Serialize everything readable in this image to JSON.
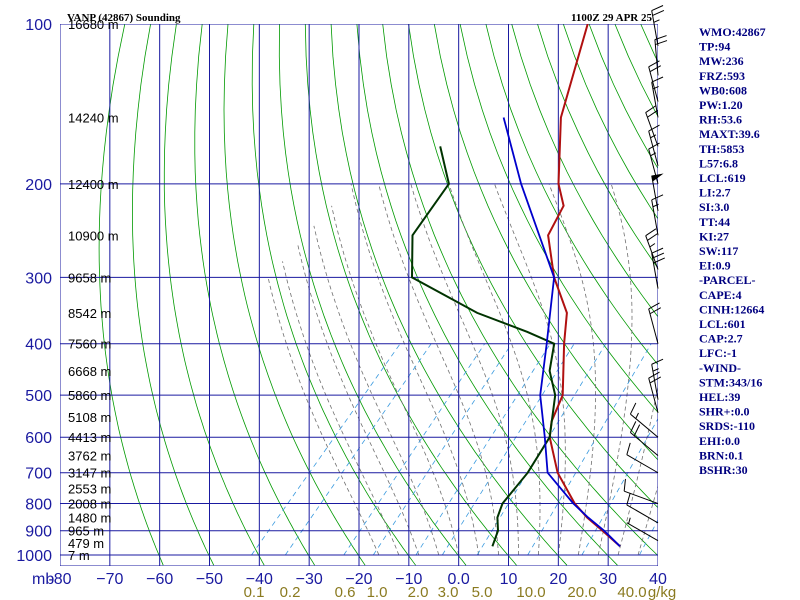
{
  "header": {
    "station": "VANP (42867) Sounding",
    "time": "1100Z 29 APR 25"
  },
  "colors": {
    "axis": "#1a1aa0",
    "dry_adiabat": "#009900",
    "moist_adiabat": "#707070",
    "mixing_ratio": "#3a9adf",
    "temperature": "#b01010",
    "dewpoint": "#003300",
    "parcel": "#0000cc",
    "wind": "#000000",
    "mixing_label": "#8a7a20",
    "index_text": "#000080"
  },
  "indices": [
    "WMO:42867",
    "TP:94",
    "MW:236",
    "FRZ:593",
    "WB0:608",
    "PW:1.20",
    "RH:53.6",
    "MAXT:39.6",
    "TH:5853",
    "L57:6.8",
    "LCL:619",
    "LI:2.7",
    "SI:3.0",
    "TT:44",
    "KI:27",
    "SW:117",
    "EI:0.9",
    "-PARCEL-",
    "CAPE:4",
    "CINH:12664",
    "LCL:601",
    "CAP:2.7",
    "LFC:-1",
    "-WIND-",
    "STM:343/16",
    "HEL:39",
    "SHR+:0.0",
    "SRDS:-110",
    "EHI:0.0",
    "BRN:0.1",
    "BSHR:30"
  ],
  "chart_data": {
    "type": "line",
    "chart_kind": "skew-T log-P sounding",
    "y_scale": "log pressure (inverted)",
    "ylim": [
      1000,
      100
    ],
    "xlim": [
      -80,
      40
    ],
    "x_unit_label": "mb",
    "grid": true,
    "pressure_ticks": [
      100,
      200,
      300,
      400,
      500,
      600,
      700,
      800,
      900,
      1000
    ],
    "temperature_ticks": [
      -80,
      -70,
      -60,
      -50,
      -40,
      -30,
      -20,
      -10,
      0,
      10,
      20,
      30,
      40
    ],
    "mixing_ratio_labels": [
      "0.1",
      "0.2",
      "0.6",
      "1.0",
      "2.0",
      "3.0",
      "5.0",
      "10.0",
      "20.0",
      "40.0",
      "g/kg"
    ],
    "mixing_ratio_values": [
      0.1,
      0.2,
      0.6,
      1.0,
      2.0,
      3.0,
      5.0,
      10.0,
      20.0,
      40.0
    ],
    "height_labels": [
      {
        "p": 100,
        "label": "16680 m"
      },
      {
        "p": 150,
        "label": "14240 m"
      },
      {
        "p": 200,
        "label": "12400 m"
      },
      {
        "p": 250,
        "label": "10900 m"
      },
      {
        "p": 300,
        "label": "9658 m"
      },
      {
        "p": 350,
        "label": "8542 m"
      },
      {
        "p": 400,
        "label": "7560 m"
      },
      {
        "p": 450,
        "label": "6668 m"
      },
      {
        "p": 500,
        "label": "5860 m"
      },
      {
        "p": 550,
        "label": "5108 m"
      },
      {
        "p": 600,
        "label": "4413 m"
      },
      {
        "p": 650,
        "label": "3762 m"
      },
      {
        "p": 700,
        "label": "3147 m"
      },
      {
        "p": 750,
        "label": "2553 m"
      },
      {
        "p": 800,
        "label": "2008 m"
      },
      {
        "p": 850,
        "label": "1480 m"
      },
      {
        "p": 900,
        "label": "965 m"
      },
      {
        "p": 950,
        "label": "479 m"
      },
      {
        "p": 1000,
        "label": "7 m"
      }
    ],
    "series": [
      {
        "key": "temperature",
        "points": [
          [
            963,
            30.8
          ],
          [
            900,
            24.5
          ],
          [
            850,
            19.0
          ],
          [
            800,
            14.0
          ],
          [
            700,
            5.0
          ],
          [
            600,
            -3.0
          ],
          [
            560,
            -5.5
          ],
          [
            500,
            -8.0
          ],
          [
            400,
            -17.0
          ],
          [
            350,
            -22.0
          ],
          [
            300,
            -31.0
          ],
          [
            250,
            -39.8
          ],
          [
            220,
            -42.0
          ],
          [
            200,
            -47.0
          ],
          [
            150,
            -58.5
          ],
          [
            100,
            -70.0
          ]
        ]
      },
      {
        "key": "dewpoint",
        "points": [
          [
            963,
            5.2
          ],
          [
            900,
            3.5
          ],
          [
            850,
            1.0
          ],
          [
            800,
            -0.5
          ],
          [
            700,
            -1.0
          ],
          [
            600,
            -3.0
          ],
          [
            500,
            -9.5
          ],
          [
            450,
            -15.0
          ],
          [
            400,
            -19.0
          ],
          [
            380,
            -26.5
          ],
          [
            350,
            -40.0
          ],
          [
            300,
            -59.5
          ],
          [
            250,
            -67.0
          ],
          [
            200,
            -69.0
          ],
          [
            170,
            -77.5
          ]
        ]
      },
      {
        "key": "parcel",
        "points": [
          [
            963,
            30.8
          ],
          [
            900,
            24.8
          ],
          [
            850,
            19.2
          ],
          [
            800,
            13.7
          ],
          [
            700,
            3.0
          ],
          [
            600,
            -4.0
          ],
          [
            500,
            -12.5
          ],
          [
            400,
            -20.5
          ],
          [
            300,
            -31.0
          ],
          [
            200,
            -54.5
          ],
          [
            150,
            -70.0
          ]
        ]
      }
    ],
    "wind_barbs": [
      {
        "p": 110,
        "dir": 350,
        "speed": 25
      },
      {
        "p": 125,
        "dir": 355,
        "speed": 20
      },
      {
        "p": 140,
        "dir": 345,
        "speed": 20
      },
      {
        "p": 150,
        "dir": 350,
        "speed": 15
      },
      {
        "p": 170,
        "dir": 340,
        "speed": 20
      },
      {
        "p": 185,
        "dir": 345,
        "speed": 15
      },
      {
        "p": 200,
        "dir": 345,
        "speed": 15
      },
      {
        "p": 225,
        "dir": 350,
        "speed": 50
      },
      {
        "p": 250,
        "dir": 350,
        "speed": 15
      },
      {
        "p": 290,
        "dir": 340,
        "speed": 25
      },
      {
        "p": 315,
        "dir": 350,
        "speed": 30
      },
      {
        "p": 400,
        "dir": 345,
        "speed": 20
      },
      {
        "p": 510,
        "dir": 350,
        "speed": 15
      },
      {
        "p": 540,
        "dir": 345,
        "speed": 20
      },
      {
        "p": 600,
        "dir": 310,
        "speed": 15
      },
      {
        "p": 650,
        "dir": 310,
        "speed": 20
      },
      {
        "p": 700,
        "dir": 300,
        "speed": 10
      },
      {
        "p": 800,
        "dir": 290,
        "speed": 10
      },
      {
        "p": 870,
        "dir": 300,
        "speed": 10
      },
      {
        "p": 940,
        "dir": 300,
        "speed": 5
      }
    ]
  }
}
